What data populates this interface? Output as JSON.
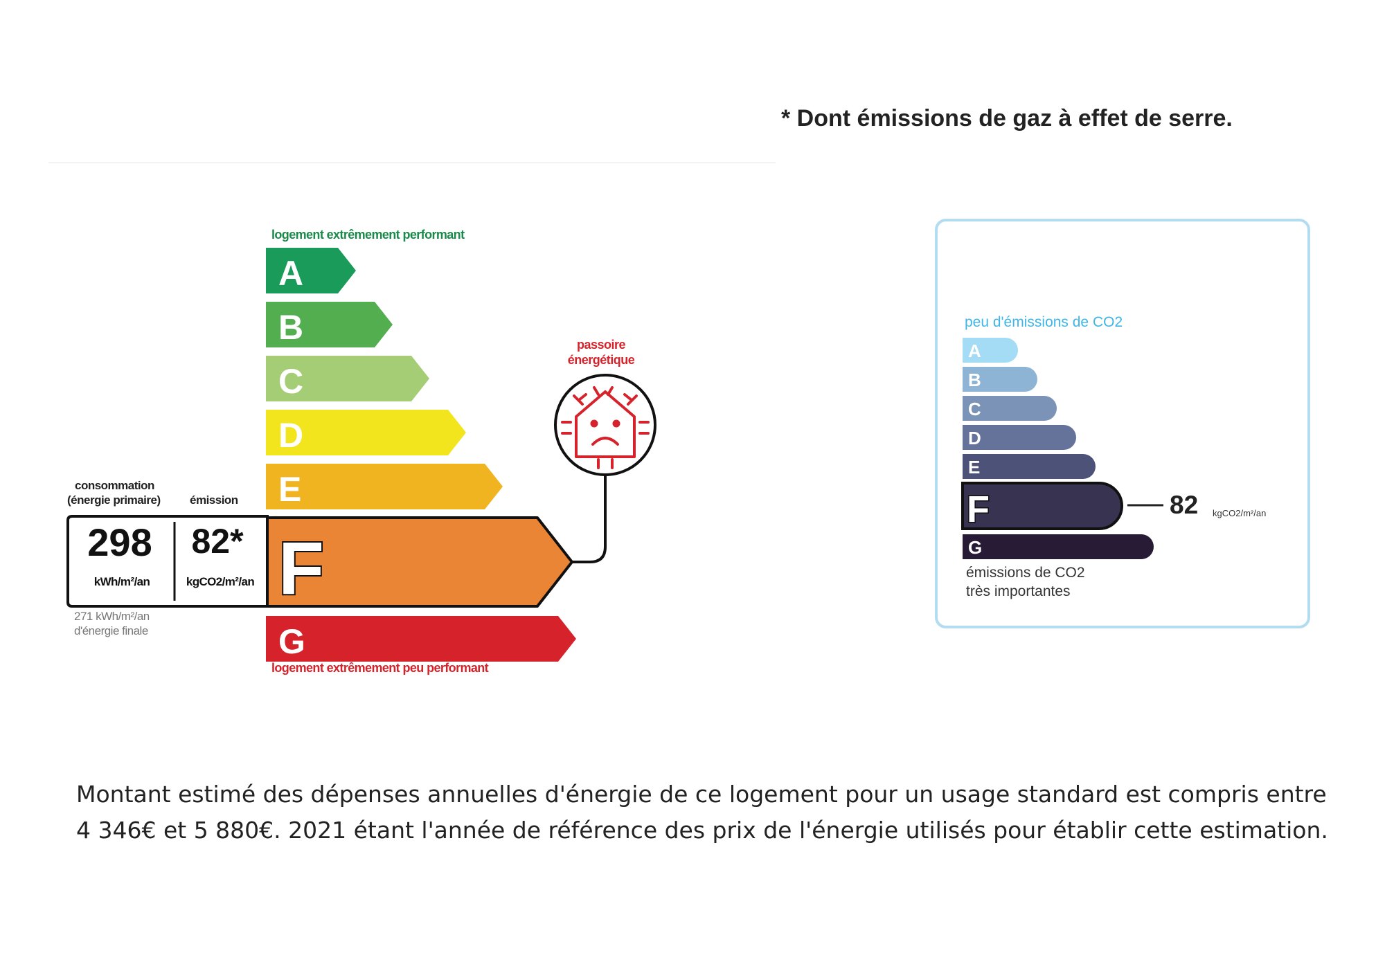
{
  "footnote": "* Dont émissions de gaz à effet de serre.",
  "dpe": {
    "top_label": "logement extrêmement performant",
    "bottom_label": "logement extrêmement peu performant",
    "classes": [
      {
        "letter": "A",
        "color": "#1a9b5a"
      },
      {
        "letter": "B",
        "color": "#52ae4f"
      },
      {
        "letter": "C",
        "color": "#a4cd75"
      },
      {
        "letter": "D",
        "color": "#f2e51d"
      },
      {
        "letter": "E",
        "color": "#f0b421"
      },
      {
        "letter": "F",
        "color": "#ea8535"
      },
      {
        "letter": "G",
        "color": "#d6222a"
      }
    ],
    "active_class": "F",
    "consumption_header": "consommation",
    "consumption_subheader": "(énergie primaire)",
    "emission_header": "émission",
    "consumption_value": "298",
    "consumption_unit": "kWh/m²/an",
    "emission_value": "82*",
    "emission_unit": "kgCO2/m²/an",
    "final_energy_line1": "271 kWh/m²/an",
    "final_energy_line2": "d'énergie finale",
    "passoire_line1": "passoire",
    "passoire_line2": "énergétique",
    "passoire_icon": "sad-house-icon"
  },
  "ges": {
    "top_label": "peu d'émissions de CO2",
    "bottom_label_line1": "émissions de CO2",
    "bottom_label_line2": "très importantes",
    "classes": [
      {
        "letter": "A",
        "color": "#a4dbf5"
      },
      {
        "letter": "B",
        "color": "#8db4d4"
      },
      {
        "letter": "C",
        "color": "#7a93b6"
      },
      {
        "letter": "D",
        "color": "#65739a"
      },
      {
        "letter": "E",
        "color": "#4d5279"
      },
      {
        "letter": "F",
        "color": "#383350"
      },
      {
        "letter": "G",
        "color": "#281b35"
      }
    ],
    "active_class": "F",
    "value": "82",
    "unit": "kgCO2/m²/an",
    "frame_color": "#b3dcf0"
  },
  "description": {
    "line1": "Montant estimé des dépenses annuelles d'énergie de ce logement pour un usage standard est compris entre",
    "line2": "4 346€ et 5 880€. 2021 étant l'année de référence des prix de l'énergie utilisés pour établir cette estimation."
  }
}
